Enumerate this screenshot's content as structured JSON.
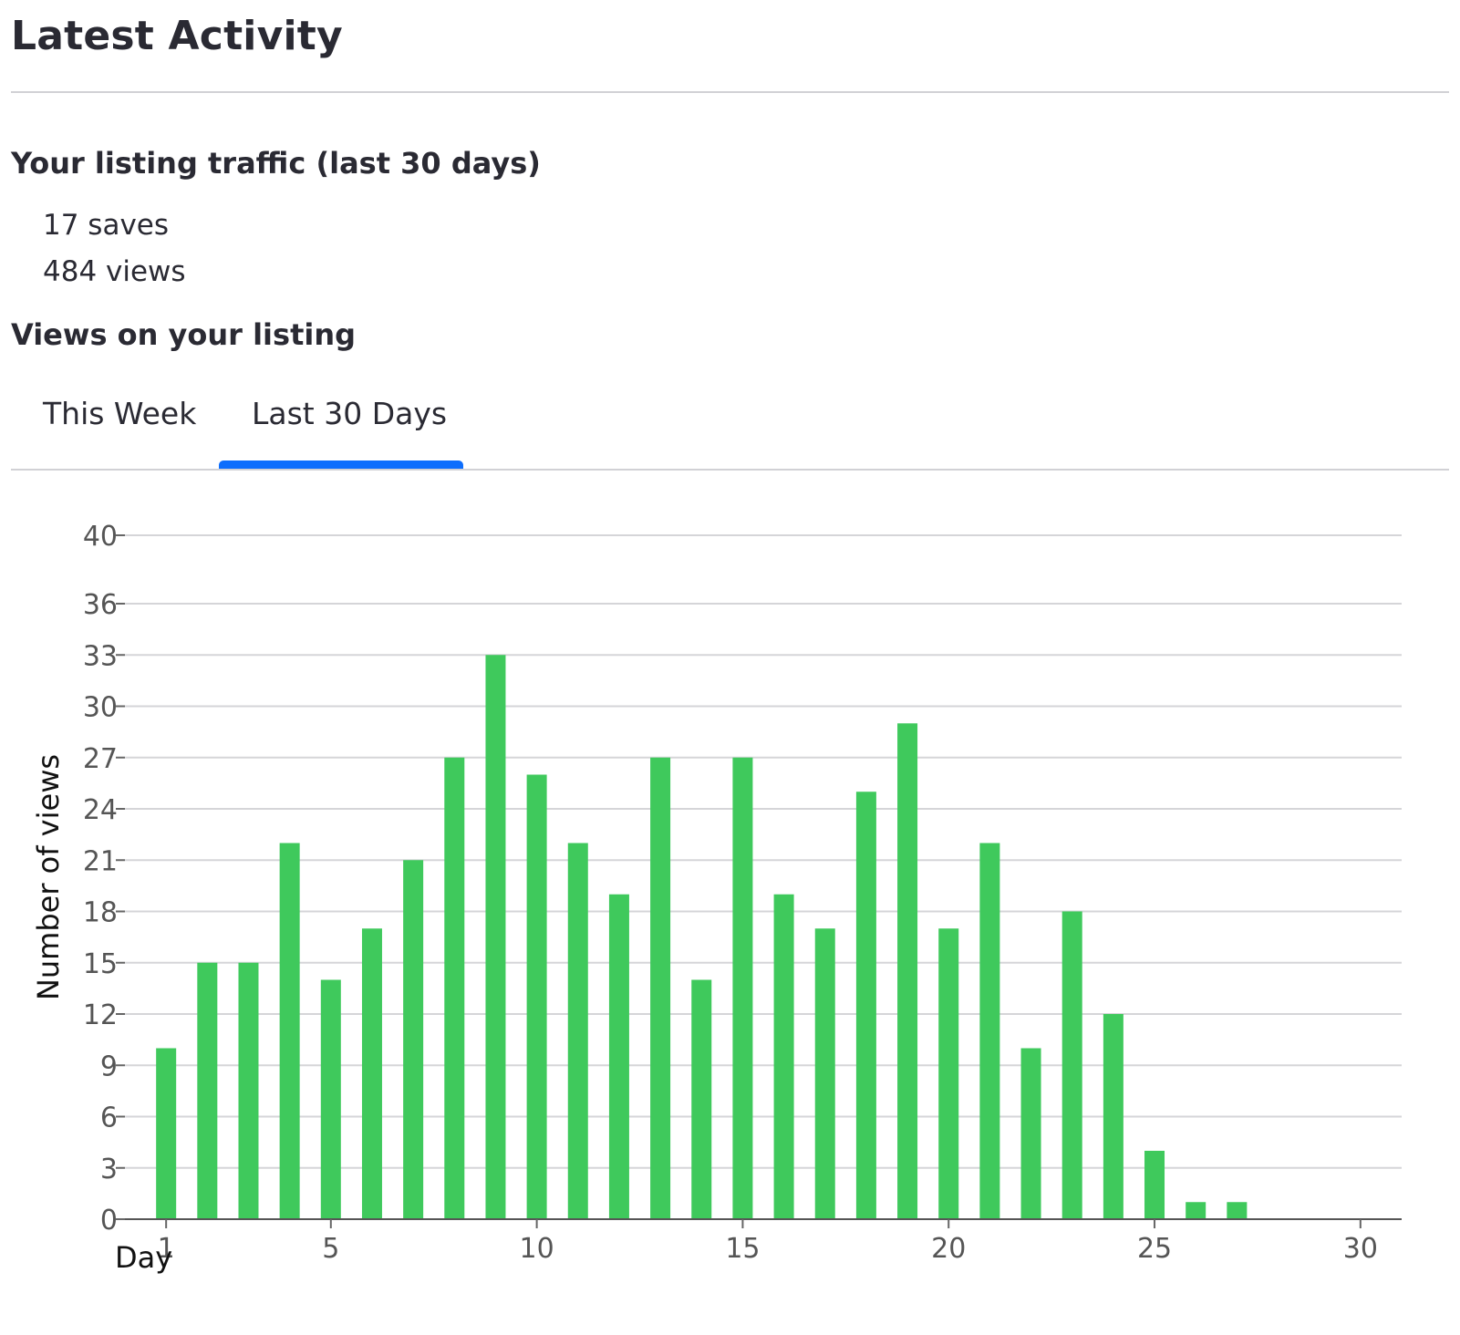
{
  "page": {
    "title": "Latest Activity"
  },
  "traffic": {
    "heading": "Your listing traffic (last 30 days)",
    "saves": "17 saves",
    "views": "484 views"
  },
  "views_section": {
    "heading": "Views on your listing",
    "tabs": [
      {
        "label": "This Week",
        "selected": false
      },
      {
        "label": "Last 30 Days",
        "selected": true
      }
    ]
  },
  "colors": {
    "bar": "#3fc95c",
    "tab_indicator": "#0d6efd",
    "gridline": "#d5d5d8",
    "axis_text": "#555555",
    "axis_title": "#111111"
  },
  "chart_data": {
    "type": "bar",
    "title": "",
    "xlabel": "Day",
    "ylabel": "Number of views",
    "x": [
      1,
      2,
      3,
      4,
      5,
      6,
      7,
      8,
      9,
      10,
      11,
      12,
      13,
      14,
      15,
      16,
      17,
      18,
      19,
      20,
      21,
      22,
      23,
      24,
      25,
      26,
      27
    ],
    "values": [
      10,
      15,
      15,
      22,
      14,
      17,
      21,
      27,
      33,
      26,
      22,
      19,
      27,
      14,
      27,
      19,
      17,
      25,
      29,
      17,
      22,
      10,
      18,
      12,
      4,
      1,
      1
    ],
    "xlim": [
      0,
      31
    ],
    "xticks": [
      1,
      5,
      10,
      15,
      20,
      25,
      30
    ],
    "ylim": [
      0,
      40
    ],
    "yticks": [
      0,
      3,
      6,
      9,
      12,
      15,
      18,
      21,
      24,
      27,
      30,
      33,
      36,
      40
    ],
    "grid": true,
    "legend": false
  }
}
